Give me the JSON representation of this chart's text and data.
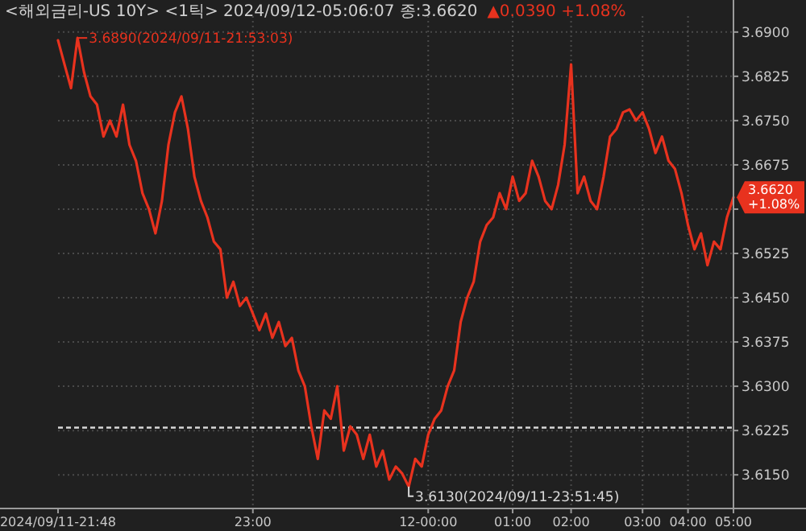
{
  "chart_data": {
    "type": "line",
    "title": "<해외금리-US 10Y> <1틱> 2024/09/12-05:06:07 종:3.6620",
    "subtitle": "▲0.0390 +1.08%",
    "categories": [
      "2024/09/11-21:48",
      null,
      null,
      null,
      null,
      null,
      null,
      null,
      null,
      null,
      null,
      null,
      null,
      null,
      null,
      null,
      null,
      null,
      null,
      null,
      null,
      null,
      null,
      null,
      null,
      null,
      null,
      null,
      null,
      null,
      "23:00",
      null,
      null,
      null,
      null,
      null,
      null,
      null,
      null,
      null,
      null,
      null,
      null,
      null,
      null,
      null,
      null,
      null,
      null,
      null,
      null,
      null,
      null,
      null,
      null,
      null,
      null,
      "12-00:00",
      null,
      null,
      null,
      null,
      null,
      null,
      null,
      null,
      null,
      null,
      null,
      null,
      "01:00",
      null,
      null,
      null,
      null,
      null,
      null,
      null,
      null,
      "02:00",
      null,
      null,
      null,
      null,
      null,
      null,
      null,
      null,
      null,
      null,
      "03:00",
      null,
      null,
      null,
      null,
      null,
      null,
      "04:00",
      null,
      null,
      null,
      null,
      null,
      null,
      "05:00"
    ],
    "series": [
      {
        "color": "#e8321e",
        "values": [
          3.6886,
          3.6845,
          3.6805,
          3.689,
          3.6832,
          3.6791,
          3.6777,
          3.6723,
          3.675,
          3.6723,
          3.6777,
          3.6709,
          3.6682,
          3.6627,
          3.66,
          3.6559,
          3.6614,
          3.6709,
          3.6764,
          3.6791,
          3.6736,
          3.6655,
          3.6614,
          3.6586,
          3.6545,
          3.6532,
          3.645,
          3.6477,
          3.6436,
          3.645,
          3.6423,
          3.6395,
          3.6423,
          3.6382,
          3.6409,
          3.6368,
          3.6382,
          3.6327,
          3.63,
          3.6232,
          3.6177,
          3.6259,
          3.6245,
          3.63,
          3.6191,
          3.6232,
          3.6218,
          3.6177,
          3.6218,
          3.6164,
          3.6191,
          3.6142,
          3.6164,
          3.6152,
          3.613,
          3.6177,
          3.6164,
          3.6218,
          3.6245,
          3.6259,
          3.63,
          3.6327,
          3.6409,
          3.645,
          3.6477,
          3.6545,
          3.6573,
          3.6586,
          3.6627,
          3.66,
          3.6655,
          3.6614,
          3.6627,
          3.6682,
          3.6655,
          3.6614,
          3.66,
          3.6641,
          3.6709,
          3.6845,
          3.6627,
          3.6655,
          3.6614,
          3.66,
          3.6655,
          3.6723,
          3.6736,
          3.6764,
          3.6769,
          3.675,
          3.6764,
          3.6736,
          3.6695,
          3.6723,
          3.6682,
          3.6668,
          3.6627,
          3.6573,
          3.6532,
          3.6559,
          3.6505,
          3.6545,
          3.6532,
          3.6586,
          3.662
        ]
      }
    ],
    "ylim": [
      3.6093,
      3.6927
    ],
    "yticks": [
      {
        "value": 3.615,
        "label": "3.6150"
      },
      {
        "value": 3.6225,
        "label": "3.6225"
      },
      {
        "value": 3.63,
        "label": "3.6300"
      },
      {
        "value": 3.6375,
        "label": "3.6375"
      },
      {
        "value": 3.645,
        "label": "3.6450"
      },
      {
        "value": 3.6525,
        "label": "3.6525"
      },
      {
        "value": 3.66,
        "label": null
      },
      {
        "value": 3.6675,
        "label": "3.6675"
      },
      {
        "value": 3.675,
        "label": "3.6750"
      },
      {
        "value": 3.6825,
        "label": "3.6825"
      },
      {
        "value": 3.69,
        "label": "3.6900"
      }
    ],
    "ref_lines": [
      {
        "axis": "y",
        "value": 3.623,
        "color": "#d8d8d8",
        "line_style": "dashed"
      }
    ],
    "annotations": [
      "3.6890(2024/09/11-21:53:03)",
      "3.6130(2024/09/11-23:51:45)",
      "3.6620\n+1.08%"
    ],
    "grid": true,
    "marker": "none",
    "line_style": "solid"
  }
}
